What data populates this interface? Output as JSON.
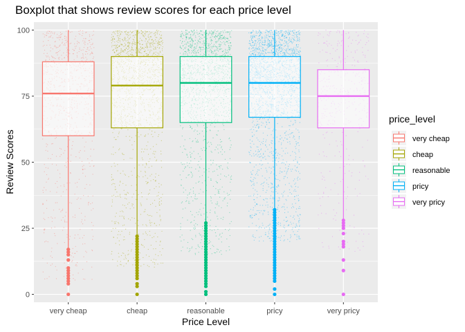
{
  "chart_data": {
    "type": "boxplot",
    "title": "Boxplot that shows review scores for each price level",
    "xlabel": "Price Level",
    "ylabel": "Review Scores",
    "ylim": [
      -3,
      103
    ],
    "yticks": [
      0,
      25,
      50,
      75,
      100
    ],
    "categories": [
      "very cheap",
      "cheap",
      "reasonable",
      "pricy",
      "very pricy"
    ],
    "legend": {
      "title": "price_level",
      "position": "right"
    },
    "grid": true,
    "colors": [
      "#F8766D",
      "#A3A500",
      "#00BF7D",
      "#00B0F6",
      "#E76BF3"
    ],
    "boxes": [
      {
        "name": "very cheap",
        "min": 17,
        "q1": 60,
        "median": 76,
        "q3": 88,
        "max": 100,
        "outliers": [
          17,
          16,
          15,
          13,
          10,
          9,
          8,
          7,
          6,
          5,
          4,
          0
        ]
      },
      {
        "name": "cheap",
        "min": 22,
        "q1": 63,
        "median": 79,
        "q3": 90,
        "max": 100,
        "outliers": [
          22,
          21,
          20,
          19,
          18,
          17,
          16,
          15,
          14,
          13,
          12,
          11,
          10,
          9,
          8,
          7,
          6,
          4,
          3,
          0
        ]
      },
      {
        "name": "reasonable",
        "min": 27,
        "q1": 65,
        "median": 80,
        "q3": 90,
        "max": 100,
        "outliers": [
          27,
          26,
          25,
          24,
          23,
          22,
          21,
          20,
          19,
          18,
          17,
          16,
          15,
          14,
          13,
          12,
          11,
          10,
          9,
          8,
          7,
          6,
          5,
          4,
          3,
          1,
          0
        ]
      },
      {
        "name": "pricy",
        "min": 32,
        "q1": 67,
        "median": 80,
        "q3": 90,
        "max": 100,
        "outliers": [
          32,
          31,
          30,
          29,
          28,
          27,
          26,
          25,
          24,
          23,
          22,
          21,
          20,
          19,
          18,
          17,
          16,
          15,
          14,
          13,
          12,
          11,
          10,
          9,
          8,
          7,
          6,
          5,
          2,
          0
        ]
      },
      {
        "name": "very pricy",
        "min": 28,
        "q1": 63,
        "median": 75,
        "q3": 85,
        "max": 100,
        "outliers": [
          28,
          27,
          26,
          25,
          23,
          20,
          19,
          18,
          13,
          9,
          0
        ]
      }
    ]
  }
}
